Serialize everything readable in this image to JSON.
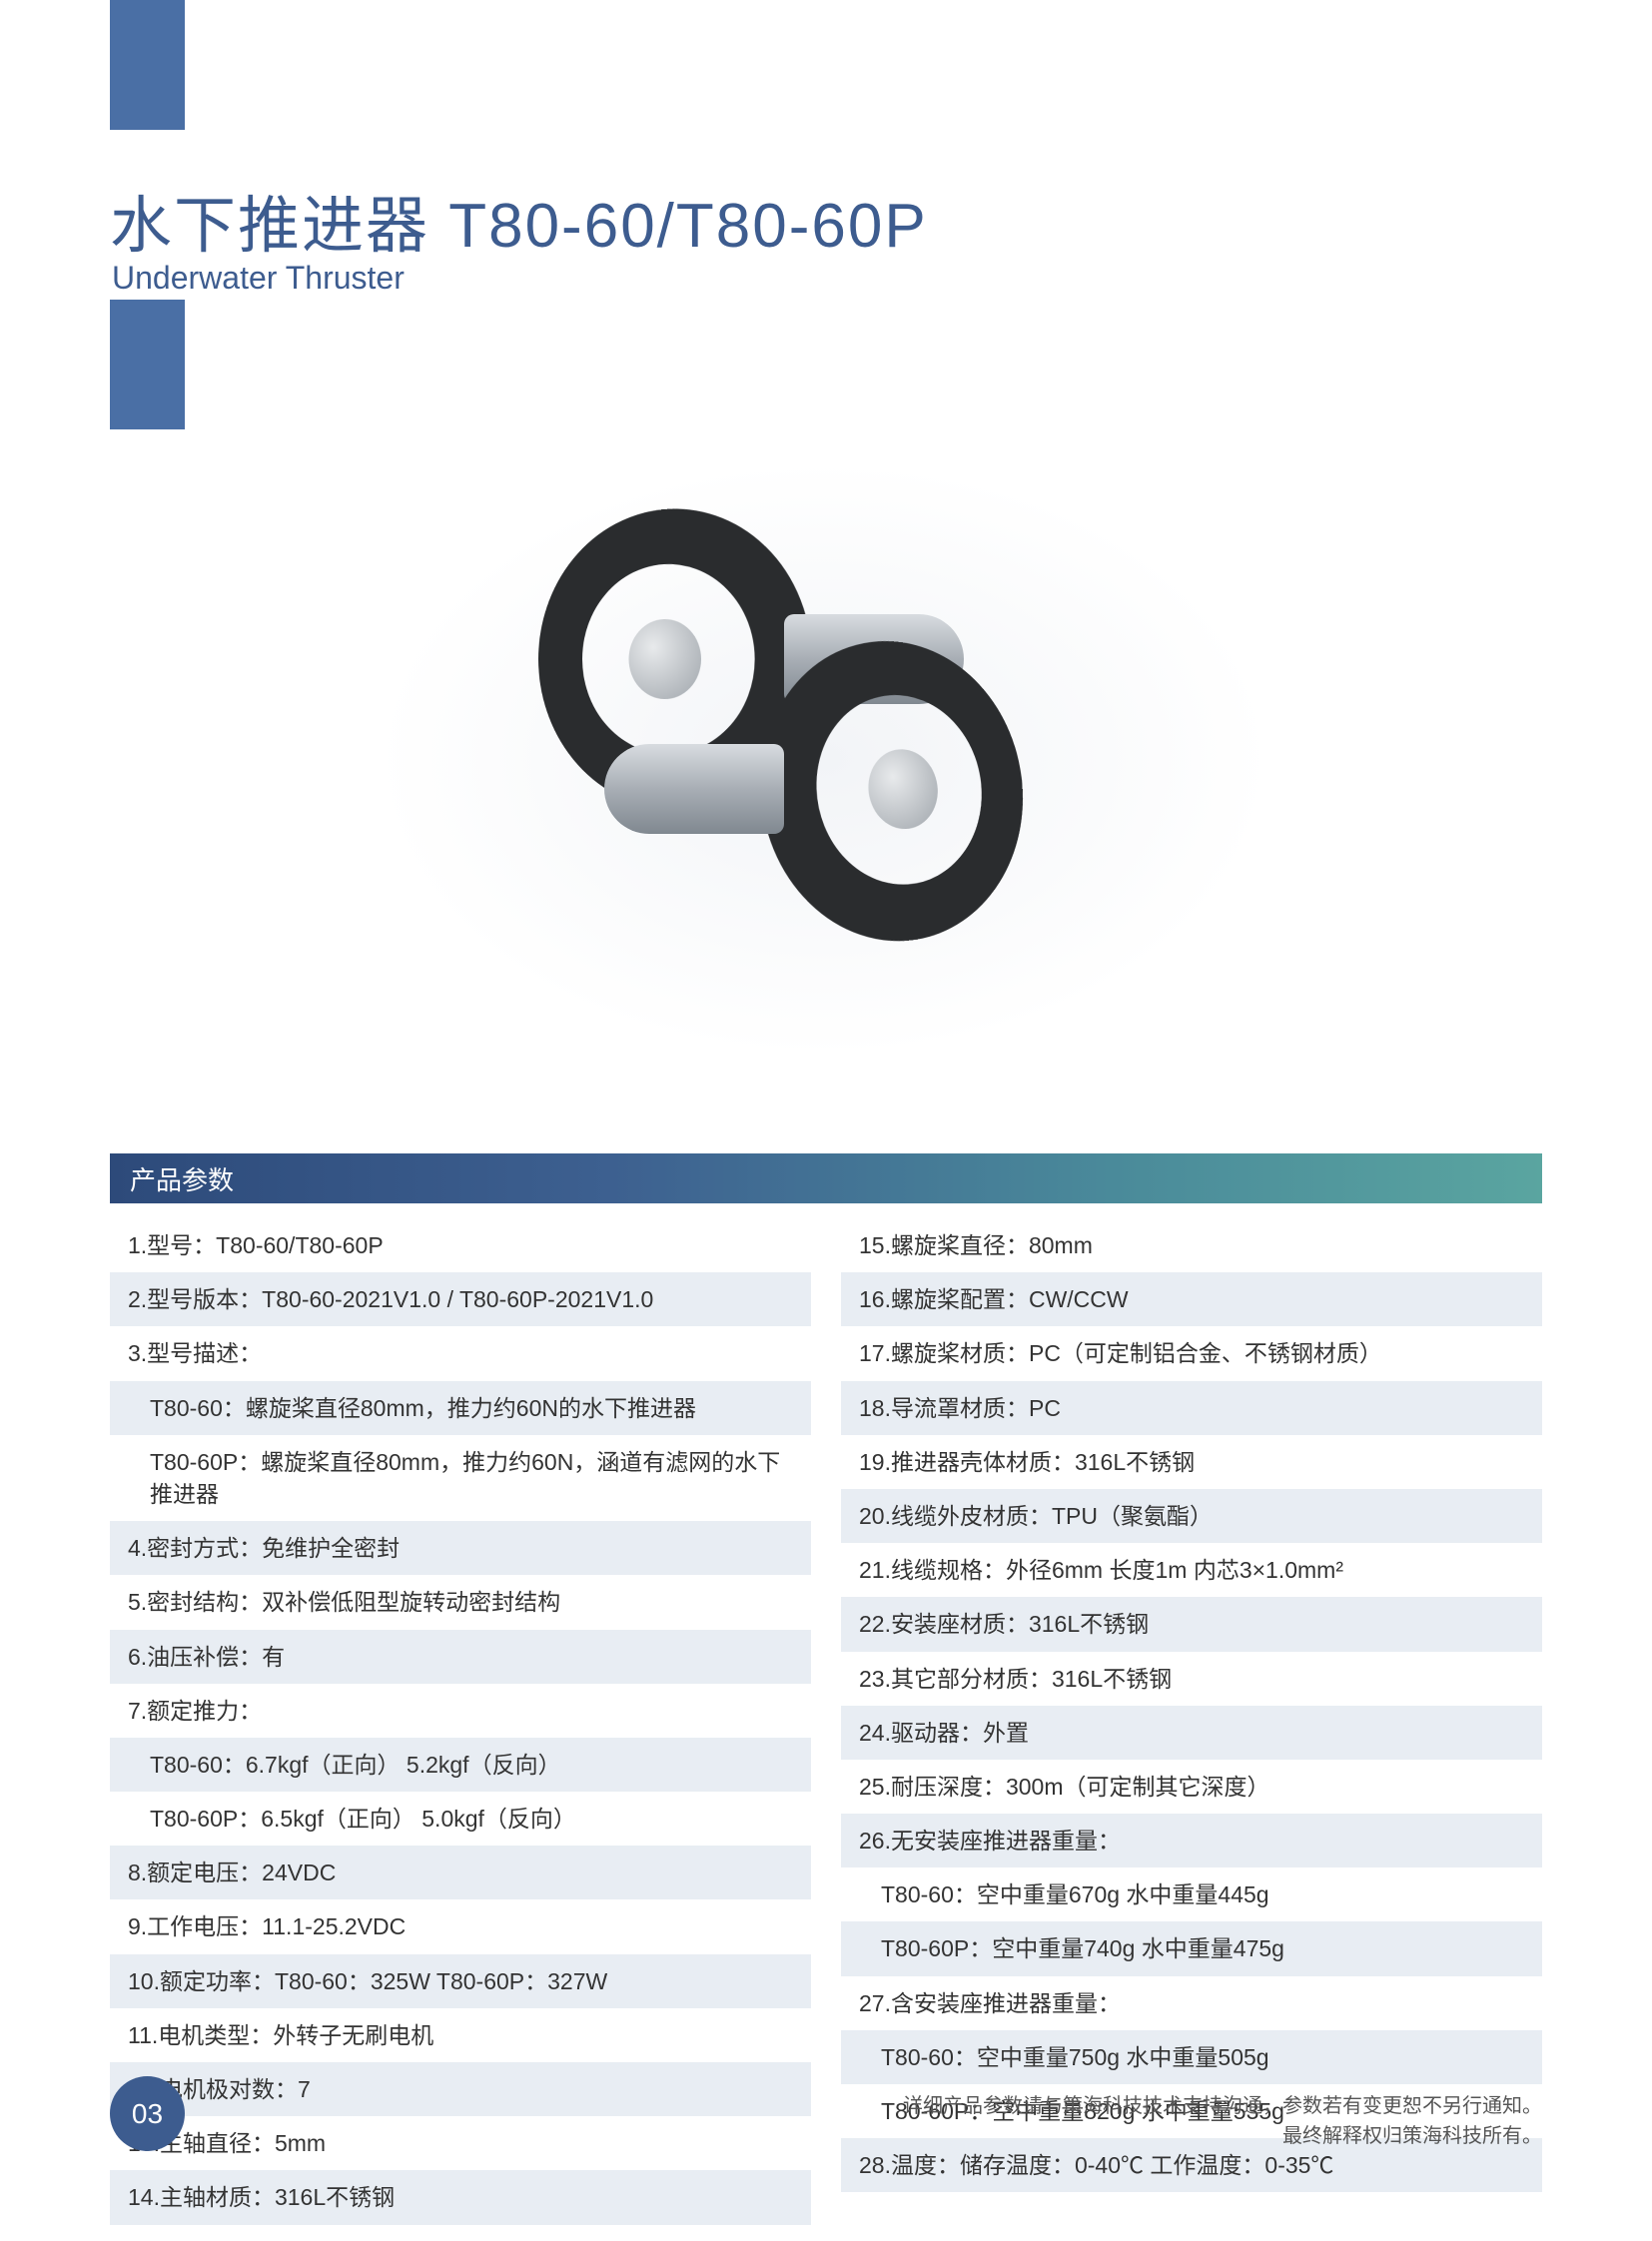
{
  "header": {
    "title_cn": "水下推进器 T80-60/T80-60P",
    "title_en": "Underwater Thruster",
    "accent_color": "#4a6fa5",
    "title_color": "#3d5c8f"
  },
  "section": {
    "label": "产品参数",
    "gradient_start": "#2d4a7a",
    "gradient_end": "#5aa5a0"
  },
  "specs_left": [
    {
      "text": "1.型号：T80-60/T80-60P",
      "shaded": false,
      "indent": false
    },
    {
      "text": "2.型号版本：T80-60-2021V1.0 / T80-60P-2021V1.0",
      "shaded": true,
      "indent": false
    },
    {
      "text": "3.型号描述：",
      "shaded": false,
      "indent": false
    },
    {
      "text": "T80-60：螺旋桨直径80mm，推力约60N的水下推进器",
      "shaded": true,
      "indent": true
    },
    {
      "text": "T80-60P：螺旋桨直径80mm，推力约60N，涵道有滤网的水下推进器",
      "shaded": false,
      "indent": true
    },
    {
      "text": "4.密封方式：免维护全密封",
      "shaded": true,
      "indent": false
    },
    {
      "text": "5.密封结构：双补偿低阻型旋转动密封结构",
      "shaded": false,
      "indent": false
    },
    {
      "text": "6.油压补偿：有",
      "shaded": true,
      "indent": false
    },
    {
      "text": "7.额定推力：",
      "shaded": false,
      "indent": false
    },
    {
      "text": "T80-60：6.7kgf（正向）  5.2kgf（反向）",
      "shaded": true,
      "indent": true
    },
    {
      "text": "T80-60P：6.5kgf（正向）  5.0kgf（反向）",
      "shaded": false,
      "indent": true
    },
    {
      "text": "8.额定电压：24VDC",
      "shaded": true,
      "indent": false
    },
    {
      "text": "9.工作电压：11.1-25.2VDC",
      "shaded": false,
      "indent": false
    },
    {
      "text": "10.额定功率：T80-60：325W   T80-60P：327W",
      "shaded": true,
      "indent": false
    },
    {
      "text": "11.电机类型：外转子无刷电机",
      "shaded": false,
      "indent": false
    },
    {
      "text": "12.电机极对数：7",
      "shaded": true,
      "indent": false
    },
    {
      "text": "13.主轴直径：5mm",
      "shaded": false,
      "indent": false
    },
    {
      "text": "14.主轴材质：316L不锈钢",
      "shaded": true,
      "indent": false
    }
  ],
  "specs_right": [
    {
      "text": "15.螺旋桨直径：80mm",
      "shaded": false,
      "indent": false
    },
    {
      "text": "16.螺旋桨配置：CW/CCW",
      "shaded": true,
      "indent": false
    },
    {
      "text": "17.螺旋桨材质：PC（可定制铝合金、不锈钢材质）",
      "shaded": false,
      "indent": false
    },
    {
      "text": "18.导流罩材质：PC",
      "shaded": true,
      "indent": false
    },
    {
      "text": "19.推进器壳体材质：316L不锈钢",
      "shaded": false,
      "indent": false
    },
    {
      "text": "20.线缆外皮材质：TPU（聚氨酯）",
      "shaded": true,
      "indent": false
    },
    {
      "text": "21.线缆规格：外径6mm   长度1m   内芯3×1.0mm²",
      "shaded": false,
      "indent": false
    },
    {
      "text": "22.安装座材质：316L不锈钢",
      "shaded": true,
      "indent": false
    },
    {
      "text": "23.其它部分材质：316L不锈钢",
      "shaded": false,
      "indent": false
    },
    {
      "text": "24.驱动器：外置",
      "shaded": true,
      "indent": false
    },
    {
      "text": "25.耐压深度：300m（可定制其它深度）",
      "shaded": false,
      "indent": false
    },
    {
      "text": "26.无安装座推进器重量：",
      "shaded": true,
      "indent": false
    },
    {
      "text": "T80-60：空中重量670g   水中重量445g",
      "shaded": false,
      "indent": true
    },
    {
      "text": "T80-60P：空中重量740g   水中重量475g",
      "shaded": true,
      "indent": true
    },
    {
      "text": "27.含安装座推进器重量：",
      "shaded": false,
      "indent": false
    },
    {
      "text": "T80-60：空中重量750g   水中重量505g",
      "shaded": true,
      "indent": true
    },
    {
      "text": "T80-60P：空中重量820g   水中重量535g",
      "shaded": false,
      "indent": true
    },
    {
      "text": "28.温度：储存温度：0-40℃ 工作温度：0-35℃",
      "shaded": true,
      "indent": false
    }
  ],
  "footer": {
    "page_number": "03",
    "note_line1": "详细产品参数请与策海科技技术支持沟通，参数若有变更恕不另行通知。",
    "note_line2": "最终解释权归策海科技所有。"
  },
  "styling": {
    "row_shaded_bg": "#e8edf3",
    "row_text_color": "#333333",
    "row_fontsize": 23,
    "page_bg": "#ffffff"
  }
}
